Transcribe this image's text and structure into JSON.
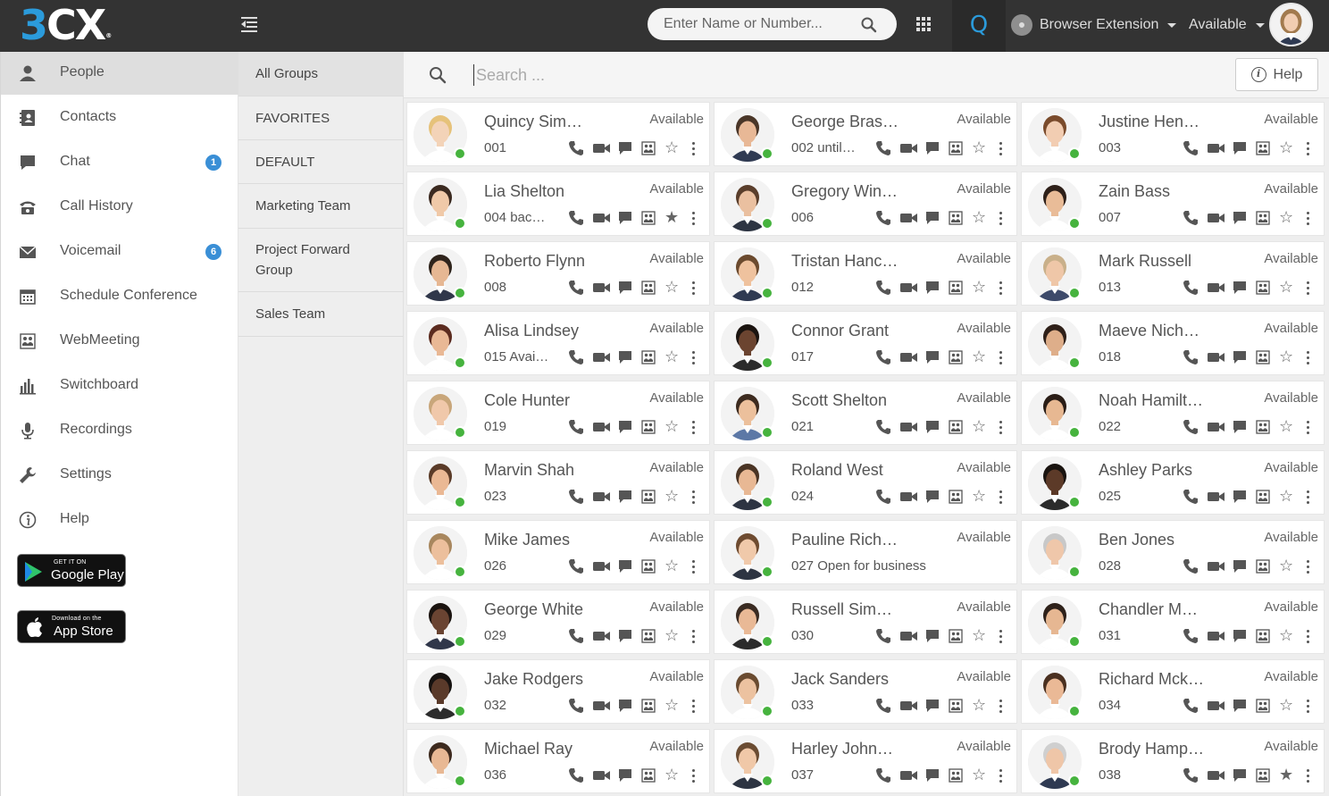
{
  "header": {
    "logo_main": "3CX",
    "logo_mark": "®",
    "search_placeholder": "Enter Name or Number...",
    "q_label": "Q",
    "extension_label": "Browser Extension",
    "status_label": "Available"
  },
  "nav": [
    {
      "label": "People",
      "icon": "person-icon",
      "active": true,
      "badge": ""
    },
    {
      "label": "Contacts",
      "icon": "contacts-icon",
      "badge": ""
    },
    {
      "label": "Chat",
      "icon": "chat-icon",
      "badge": "1"
    },
    {
      "label": "Call History",
      "icon": "phone-icon",
      "badge": ""
    },
    {
      "label": "Voicemail",
      "icon": "envelope-icon",
      "badge": "6"
    },
    {
      "label": "Schedule Conference",
      "icon": "calendar-icon",
      "badge": ""
    },
    {
      "label": "WebMeeting",
      "icon": "webmeeting-icon",
      "badge": ""
    },
    {
      "label": "Switchboard",
      "icon": "bar-chart-icon",
      "badge": ""
    },
    {
      "label": "Recordings",
      "icon": "microphone-icon",
      "badge": ""
    },
    {
      "label": "Settings",
      "icon": "wrench-icon",
      "badge": ""
    },
    {
      "label": "Help",
      "icon": "info-icon",
      "badge": ""
    }
  ],
  "stores": {
    "google_small": "GET IT ON",
    "google_big": "Google Play",
    "apple_small": "Download on the",
    "apple_big": "App Store"
  },
  "groups": [
    {
      "label": "All Groups",
      "active": true
    },
    {
      "label": "FAVORITES"
    },
    {
      "label": "DEFAULT"
    },
    {
      "label": "Marketing Team"
    },
    {
      "label": "Project Forward Group"
    },
    {
      "label": "Sales Team"
    }
  ],
  "main": {
    "search_placeholder": "Search ...",
    "help_label": "Help"
  },
  "contacts": [
    {
      "name": "Quincy Sim…",
      "status": "Available",
      "ext": "001",
      "skin": "#f3d3b8",
      "hair": "#e6c27a",
      "shirt": "#ffffff",
      "fav": false
    },
    {
      "name": "George Bras…",
      "status": "Available",
      "ext": "002  until…",
      "skin": "#e8b896",
      "hair": "#4a3628",
      "shirt": "#2f3a52",
      "fav": false
    },
    {
      "name": "Justine Hen…",
      "status": "Available",
      "ext": "003",
      "skin": "#f2cdb2",
      "hair": "#7a4b2c",
      "shirt": "#ffffff",
      "fav": false
    },
    {
      "name": "Lia Shelton",
      "status": "Available",
      "ext": "004  bac…",
      "skin": "#f0c9a8",
      "hair": "#3b2a20",
      "shirt": "#ffffff",
      "fav": true
    },
    {
      "name": "Gregory Win…",
      "status": "Available",
      "ext": "006",
      "skin": "#eac0a0",
      "hair": "#5a3e2b",
      "shirt": "#2d3442",
      "fav": false
    },
    {
      "name": "Zain Bass",
      "status": "Available",
      "ext": "007",
      "skin": "#e9bc98",
      "hair": "#2e2019",
      "shirt": "#ffffff",
      "fav": false
    },
    {
      "name": "Roberto Flynn",
      "status": "Available",
      "ext": "008",
      "skin": "#e6b793",
      "hair": "#2f241c",
      "shirt": "#30374a",
      "fav": false
    },
    {
      "name": "Tristan Hanc…",
      "status": "Available",
      "ext": "012",
      "skin": "#efc29e",
      "hair": "#6b4a2e",
      "shirt": "#2f3a52",
      "fav": false
    },
    {
      "name": "Mark Russell",
      "status": "Available",
      "ext": "013",
      "skin": "#efc7a8",
      "hair": "#c9b08a",
      "shirt": "#3d4a6a",
      "fav": false
    },
    {
      "name": "Alisa Lindsey",
      "status": "Available",
      "ext": "015  Avai…",
      "skin": "#e9b895",
      "hair": "#5b2b1f",
      "shirt": "#ffffff",
      "fav": false
    },
    {
      "name": "Connor Grant",
      "status": "Available",
      "ext": "017",
      "skin": "#6b4430",
      "hair": "#1b1410",
      "shirt": "#2b2b2b",
      "fav": false
    },
    {
      "name": "Maeve Nich…",
      "status": "Available",
      "ext": "018",
      "skin": "#deae8a",
      "hair": "#2f2019",
      "shirt": "#ffffff",
      "fav": false
    },
    {
      "name": "Cole Hunter",
      "status": "Available",
      "ext": "019",
      "skin": "#f0c8aa",
      "hair": "#c8a67a",
      "shirt": "#ffffff",
      "fav": false
    },
    {
      "name": "Scott Shelton",
      "status": "Available",
      "ext": "021",
      "skin": "#ecc09c",
      "hair": "#3d2b1f",
      "shirt": "#5c78a6",
      "fav": false
    },
    {
      "name": "Noah Hamilt…",
      "status": "Available",
      "ext": "022",
      "skin": "#e7b892",
      "hair": "#2a1d16",
      "shirt": "#ffffff",
      "fav": false
    },
    {
      "name": "Marvin Shah",
      "status": "Available",
      "ext": "023",
      "skin": "#eab894",
      "hair": "#5a3b28",
      "shirt": "#ffffff",
      "fav": false
    },
    {
      "name": "Roland West",
      "status": "Available",
      "ext": "024",
      "skin": "#e8b894",
      "hair": "#4a3424",
      "shirt": "#2d3442",
      "fav": false
    },
    {
      "name": "Ashley Parks",
      "status": "Available",
      "ext": "025",
      "skin": "#5c3a28",
      "hair": "#1a1410",
      "shirt": "#2b2b2b",
      "fav": false
    },
    {
      "name": "Mike James",
      "status": "Available",
      "ext": "026",
      "skin": "#ecbf9c",
      "hair": "#a8875e",
      "shirt": "#ffffff",
      "fav": false
    },
    {
      "name": "Pauline Rich…",
      "status": "Available",
      "ext": "027  Open for business",
      "skin": "#f0c9aa",
      "hair": "#6e4b30",
      "shirt": "#2d3442",
      "fav": false
    },
    {
      "name": "Ben Jones",
      "status": "Available",
      "ext": "028",
      "skin": "#efc7aa",
      "hair": "#c8c8c8",
      "shirt": "#ffffff",
      "fav": false
    },
    {
      "name": "George White",
      "status": "Available",
      "ext": "029",
      "skin": "#6a4432",
      "hair": "#1b1410",
      "shirt": "#30374a",
      "fav": false
    },
    {
      "name": "Russell Sim…",
      "status": "Available",
      "ext": "030",
      "skin": "#e9b996",
      "hair": "#3a2b22",
      "shirt": "#2b2b2b",
      "fav": false
    },
    {
      "name": "Chandler M…",
      "status": "Available",
      "ext": "031",
      "skin": "#e6b792",
      "hair": "#2e211a",
      "shirt": "#ffffff",
      "fav": false
    },
    {
      "name": "Jake Rodgers",
      "status": "Available",
      "ext": "032",
      "skin": "#5a3a2a",
      "hair": "#161210",
      "shirt": "#2b2b2b",
      "fav": false
    },
    {
      "name": "Jack Sanders",
      "status": "Available",
      "ext": "033",
      "skin": "#ecc2a0",
      "hair": "#6a4b30",
      "shirt": "#ffffff",
      "fav": false
    },
    {
      "name": "Richard Mck…",
      "status": "Available",
      "ext": "034",
      "skin": "#eab996",
      "hair": "#4a3020",
      "shirt": "#ffffff",
      "fav": false
    },
    {
      "name": "Michael Ray",
      "status": "Available",
      "ext": "036",
      "skin": "#e8b894",
      "hair": "#3d2a1e",
      "shirt": "#ffffff",
      "fav": false
    },
    {
      "name": "Harley John…",
      "status": "Available",
      "ext": "037",
      "skin": "#f0c8a8",
      "hair": "#6b4c32",
      "shirt": "#2d3442",
      "fav": false
    },
    {
      "name": "Brody Hamp…",
      "status": "Available",
      "ext": "038",
      "skin": "#efc6a8",
      "hair": "#cfcfcf",
      "shirt": "#2f3a52",
      "fav": true
    }
  ],
  "colors": {
    "accent": "#2b9bdb",
    "online": "#46b33e",
    "badge": "#3a8fd6",
    "topbar": "#333333"
  }
}
